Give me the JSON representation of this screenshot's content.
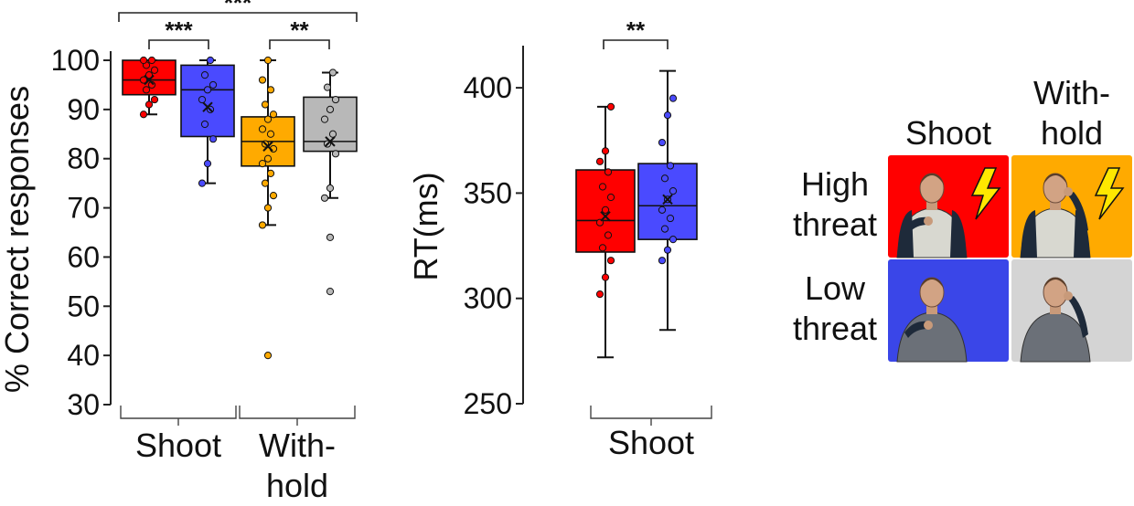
{
  "chart_data": [
    {
      "type": "box",
      "ylabel": "% Correct responses",
      "ylim": [
        30,
        100
      ],
      "yticks": [
        30,
        40,
        50,
        60,
        70,
        80,
        90,
        100
      ],
      "groups": [
        {
          "label": "Shoot",
          "boxes": [
            0,
            1
          ]
        },
        {
          "label": "With-\nhold",
          "boxes": [
            2,
            3
          ]
        }
      ],
      "boxes": [
        {
          "color": "#ff0000",
          "condition": "High threat / Shoot",
          "whisker_low": 89,
          "q1": 93,
          "median": 96,
          "q3": 100,
          "whisker_high": 100,
          "mean": 96,
          "points": [
            89,
            91,
            92,
            94,
            95,
            96,
            97,
            98,
            99,
            100,
            100
          ],
          "outliers": []
        },
        {
          "color": "#4a4aff",
          "condition": "Low threat / Shoot",
          "whisker_low": 75,
          "q1": 84.5,
          "median": 94,
          "q3": 99,
          "whisker_high": 100,
          "mean": 90.5,
          "points": [
            75,
            79,
            84,
            87,
            90,
            92,
            94,
            95,
            97,
            100
          ],
          "outliers": []
        },
        {
          "color": "#ffaa00",
          "condition": "High threat / Withhold",
          "whisker_low": 66.5,
          "q1": 78.5,
          "median": 83.5,
          "q3": 88.5,
          "whisker_high": 100,
          "mean": 82.5,
          "points": [
            66.5,
            70,
            72.5,
            75,
            77,
            79,
            80,
            82,
            83,
            85,
            86,
            88,
            89,
            91,
            94,
            96,
            100
          ],
          "outliers": [
            40
          ]
        },
        {
          "color": "#b8b8b8",
          "condition": "Low threat / Withhold",
          "whisker_low": 72,
          "q1": 81.5,
          "median": 83.5,
          "q3": 92.5,
          "whisker_high": 97.5,
          "mean": 83.5,
          "points": [
            72,
            74,
            81,
            83,
            85,
            88,
            90,
            92,
            94.5,
            97.5
          ],
          "outliers": [
            64,
            53
          ]
        }
      ],
      "significance": [
        {
          "from": 0,
          "to": 3,
          "label": "***"
        },
        {
          "from": 0,
          "to": 1,
          "label": "***"
        },
        {
          "from": 2,
          "to": 3,
          "label": "**"
        }
      ]
    },
    {
      "type": "box",
      "ylabel": "RT(ms)",
      "ylim": [
        250,
        420
      ],
      "yticks": [
        250,
        300,
        350,
        400
      ],
      "groups": [
        {
          "label": "Shoot",
          "boxes": [
            0,
            1
          ]
        }
      ],
      "boxes": [
        {
          "color": "#ff0000",
          "condition": "High threat / Shoot",
          "whisker_low": 272,
          "q1": 322,
          "median": 337,
          "q3": 361,
          "whisker_high": 391,
          "mean": 339,
          "points": [
            302,
            310,
            318,
            324,
            330,
            336,
            342,
            348,
            353,
            360,
            365,
            370,
            391
          ],
          "outliers": []
        },
        {
          "color": "#4a4aff",
          "condition": "Low threat / Shoot",
          "whisker_low": 285,
          "q1": 328,
          "median": 344,
          "q3": 364,
          "whisker_high": 408,
          "mean": 347,
          "points": [
            318,
            323,
            328,
            333,
            338,
            342,
            347,
            351,
            357,
            363,
            374,
            387,
            395
          ],
          "outliers": []
        }
      ],
      "significance": [
        {
          "from": 0,
          "to": 1,
          "label": "**"
        }
      ]
    }
  ],
  "legend": {
    "col_labels": [
      "Shoot",
      "With-\nhold"
    ],
    "row_labels": [
      "High\nthreat",
      "Low\nthreat"
    ],
    "cells": [
      {
        "color": "#ff0000",
        "lightning": true,
        "gesture": "point"
      },
      {
        "color": "#ffaa00",
        "lightning": true,
        "gesture": "phone"
      },
      {
        "color": "#3a46e8",
        "lightning": false,
        "gesture": "point"
      },
      {
        "color": "#d4d4d4",
        "lightning": false,
        "gesture": "phone"
      }
    ]
  }
}
